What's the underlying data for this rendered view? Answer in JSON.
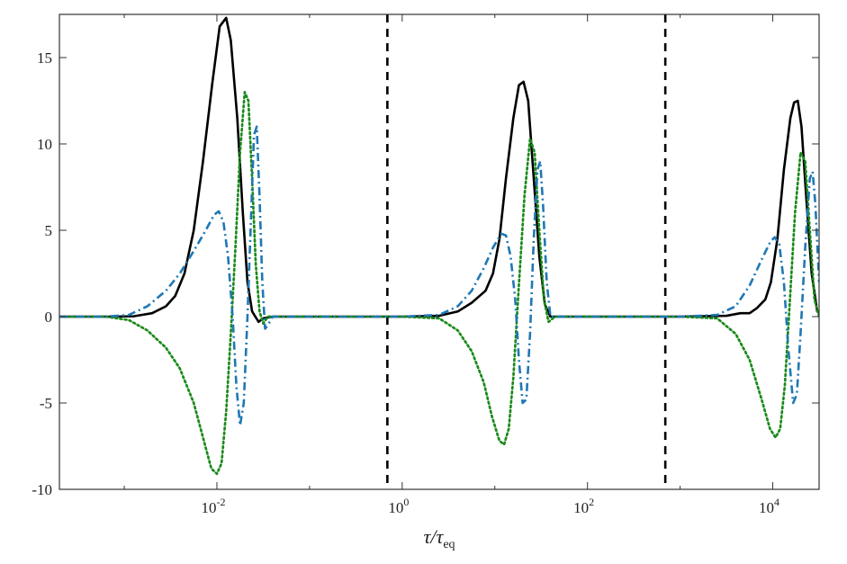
{
  "chart_data": {
    "type": "line",
    "title": "",
    "xlabel": "τ/τeq",
    "xlabel_main": "τ/τ",
    "xlabel_sub": "eq",
    "ylabel": "",
    "xscale": "log",
    "xlim_log10": [
      -3.7,
      4.5
    ],
    "ylim": [
      -10,
      17.5
    ],
    "yticks": [
      -10,
      -5,
      0,
      5,
      10,
      15
    ],
    "ytick_labels": [
      "-10",
      "-5",
      "0",
      "5",
      "10",
      "15"
    ],
    "xticks_log10": [
      -2,
      0,
      2,
      4
    ],
    "xtick_labels": [
      {
        "base": "10",
        "exp": "-2"
      },
      {
        "base": "10",
        "exp": "0"
      },
      {
        "base": "10",
        "exp": "2"
      },
      {
        "base": "10",
        "exp": "4"
      }
    ],
    "grid": false,
    "legend": "none",
    "vlines_log10": [
      -0.16,
      2.84
    ],
    "vline_style": {
      "color": "#000000",
      "dash": "dashed"
    },
    "series": [
      {
        "style": "solid",
        "color": "#000000",
        "points": [
          [
            -3.7,
            0.0
          ],
          [
            -3.2,
            0.0
          ],
          [
            -2.9,
            0.02
          ],
          [
            -2.7,
            0.2
          ],
          [
            -2.55,
            0.6
          ],
          [
            -2.45,
            1.2
          ],
          [
            -2.35,
            2.5
          ],
          [
            -2.25,
            5.0
          ],
          [
            -2.15,
            9.0
          ],
          [
            -2.05,
            13.5
          ],
          [
            -1.97,
            16.8
          ],
          [
            -1.9,
            17.3
          ],
          [
            -1.85,
            16.0
          ],
          [
            -1.78,
            11.5
          ],
          [
            -1.72,
            6.0
          ],
          [
            -1.67,
            2.0
          ],
          [
            -1.62,
            0.3
          ],
          [
            -1.55,
            -0.3
          ],
          [
            -1.5,
            -0.1
          ],
          [
            -1.4,
            0.0
          ],
          [
            -0.16,
            0.0
          ],
          [
            0.0,
            0.0
          ],
          [
            0.4,
            0.05
          ],
          [
            0.6,
            0.3
          ],
          [
            0.75,
            0.8
          ],
          [
            0.9,
            1.5
          ],
          [
            0.98,
            2.5
          ],
          [
            1.05,
            4.5
          ],
          [
            1.12,
            8.0
          ],
          [
            1.2,
            11.5
          ],
          [
            1.26,
            13.4
          ],
          [
            1.31,
            13.6
          ],
          [
            1.36,
            12.5
          ],
          [
            1.42,
            8.0
          ],
          [
            1.48,
            3.5
          ],
          [
            1.54,
            0.7
          ],
          [
            1.6,
            0.0
          ],
          [
            2.84,
            0.0
          ],
          [
            3.0,
            0.0
          ],
          [
            3.5,
            0.05
          ],
          [
            3.65,
            0.2
          ],
          [
            3.75,
            0.2
          ],
          [
            3.83,
            0.5
          ],
          [
            3.92,
            1.0
          ],
          [
            3.98,
            2.0
          ],
          [
            4.05,
            4.5
          ],
          [
            4.12,
            8.5
          ],
          [
            4.19,
            11.5
          ],
          [
            4.23,
            12.4
          ],
          [
            4.27,
            12.5
          ],
          [
            4.31,
            11.0
          ],
          [
            4.36,
            7.0
          ],
          [
            4.42,
            2.5
          ],
          [
            4.48,
            0.3
          ],
          [
            4.55,
            0.0
          ],
          [
            4.5,
            0.0
          ]
        ]
      },
      {
        "style": "dotted",
        "color": "#1a8a1a",
        "points": [
          [
            -3.7,
            0.0
          ],
          [
            -3.2,
            0.0
          ],
          [
            -2.95,
            -0.2
          ],
          [
            -2.75,
            -0.8
          ],
          [
            -2.55,
            -1.8
          ],
          [
            -2.4,
            -3.0
          ],
          [
            -2.25,
            -5.0
          ],
          [
            -2.15,
            -7.0
          ],
          [
            -2.06,
            -8.8
          ],
          [
            -2.0,
            -9.1
          ],
          [
            -1.95,
            -8.5
          ],
          [
            -1.9,
            -5.5
          ],
          [
            -1.85,
            -1.0
          ],
          [
            -1.8,
            4.0
          ],
          [
            -1.75,
            9.5
          ],
          [
            -1.7,
            13.0
          ],
          [
            -1.66,
            12.5
          ],
          [
            -1.62,
            8.0
          ],
          [
            -1.58,
            3.0
          ],
          [
            -1.54,
            0.3
          ],
          [
            -1.5,
            -0.4
          ],
          [
            -1.45,
            0.0
          ],
          [
            -0.16,
            0.0
          ],
          [
            0.0,
            0.0
          ],
          [
            0.4,
            -0.1
          ],
          [
            0.6,
            -0.8
          ],
          [
            0.75,
            -2.0
          ],
          [
            0.88,
            -3.8
          ],
          [
            0.97,
            -5.8
          ],
          [
            1.05,
            -7.2
          ],
          [
            1.1,
            -7.4
          ],
          [
            1.15,
            -6.5
          ],
          [
            1.2,
            -3.5
          ],
          [
            1.25,
            1.0
          ],
          [
            1.32,
            7.0
          ],
          [
            1.38,
            10.3
          ],
          [
            1.43,
            9.5
          ],
          [
            1.48,
            5.0
          ],
          [
            1.53,
            1.0
          ],
          [
            1.58,
            -0.3
          ],
          [
            1.65,
            0.0
          ],
          [
            2.84,
            0.0
          ],
          [
            3.0,
            0.0
          ],
          [
            3.4,
            -0.1
          ],
          [
            3.6,
            -1.0
          ],
          [
            3.75,
            -2.5
          ],
          [
            3.88,
            -4.8
          ],
          [
            3.97,
            -6.5
          ],
          [
            4.03,
            -7.0
          ],
          [
            4.08,
            -6.5
          ],
          [
            4.13,
            -4.0
          ],
          [
            4.18,
            0.5
          ],
          [
            4.24,
            6.0
          ],
          [
            4.3,
            9.5
          ],
          [
            4.35,
            9.0
          ],
          [
            4.4,
            5.0
          ],
          [
            4.45,
            1.0
          ],
          [
            4.5,
            0.0
          ]
        ]
      },
      {
        "style": "dashdot",
        "color": "#1f78b4",
        "points": [
          [
            -3.7,
            0.0
          ],
          [
            -3.2,
            0.0
          ],
          [
            -2.95,
            0.1
          ],
          [
            -2.75,
            0.6
          ],
          [
            -2.55,
            1.5
          ],
          [
            -2.4,
            2.5
          ],
          [
            -2.25,
            3.8
          ],
          [
            -2.12,
            5.0
          ],
          [
            -2.03,
            5.9
          ],
          [
            -1.98,
            6.1
          ],
          [
            -1.93,
            5.5
          ],
          [
            -1.88,
            3.5
          ],
          [
            -1.83,
            0.0
          ],
          [
            -1.79,
            -4.0
          ],
          [
            -1.75,
            -6.3
          ],
          [
            -1.71,
            -5.0
          ],
          [
            -1.67,
            0.0
          ],
          [
            -1.63,
            6.0
          ],
          [
            -1.6,
            10.5
          ],
          [
            -1.57,
            11.0
          ],
          [
            -1.54,
            7.0
          ],
          [
            -1.51,
            2.0
          ],
          [
            -1.48,
            -0.7
          ],
          [
            -1.45,
            -0.5
          ],
          [
            -1.4,
            0.0
          ],
          [
            -0.16,
            0.0
          ],
          [
            0.0,
            0.0
          ],
          [
            0.4,
            0.1
          ],
          [
            0.6,
            0.6
          ],
          [
            0.75,
            1.5
          ],
          [
            0.88,
            2.8
          ],
          [
            0.98,
            4.0
          ],
          [
            1.07,
            4.8
          ],
          [
            1.12,
            4.7
          ],
          [
            1.17,
            3.5
          ],
          [
            1.22,
            1.0
          ],
          [
            1.26,
            -2.5
          ],
          [
            1.3,
            -5.0
          ],
          [
            1.34,
            -4.8
          ],
          [
            1.38,
            -1.0
          ],
          [
            1.42,
            4.5
          ],
          [
            1.46,
            8.5
          ],
          [
            1.49,
            9.0
          ],
          [
            1.52,
            6.5
          ],
          [
            1.56,
            2.0
          ],
          [
            1.6,
            0.0
          ],
          [
            2.84,
            0.0
          ],
          [
            3.0,
            0.0
          ],
          [
            3.4,
            0.1
          ],
          [
            3.6,
            0.6
          ],
          [
            3.75,
            1.8
          ],
          [
            3.88,
            3.3
          ],
          [
            3.97,
            4.3
          ],
          [
            4.02,
            4.6
          ],
          [
            4.07,
            4.2
          ],
          [
            4.12,
            2.0
          ],
          [
            4.17,
            -2.0
          ],
          [
            4.22,
            -5.0
          ],
          [
            4.26,
            -4.5
          ],
          [
            4.3,
            -1.0
          ],
          [
            4.35,
            4.0
          ],
          [
            4.4,
            8.0
          ],
          [
            4.43,
            8.4
          ],
          [
            4.46,
            6.5
          ],
          [
            4.5,
            2.0
          ]
        ]
      }
    ]
  }
}
